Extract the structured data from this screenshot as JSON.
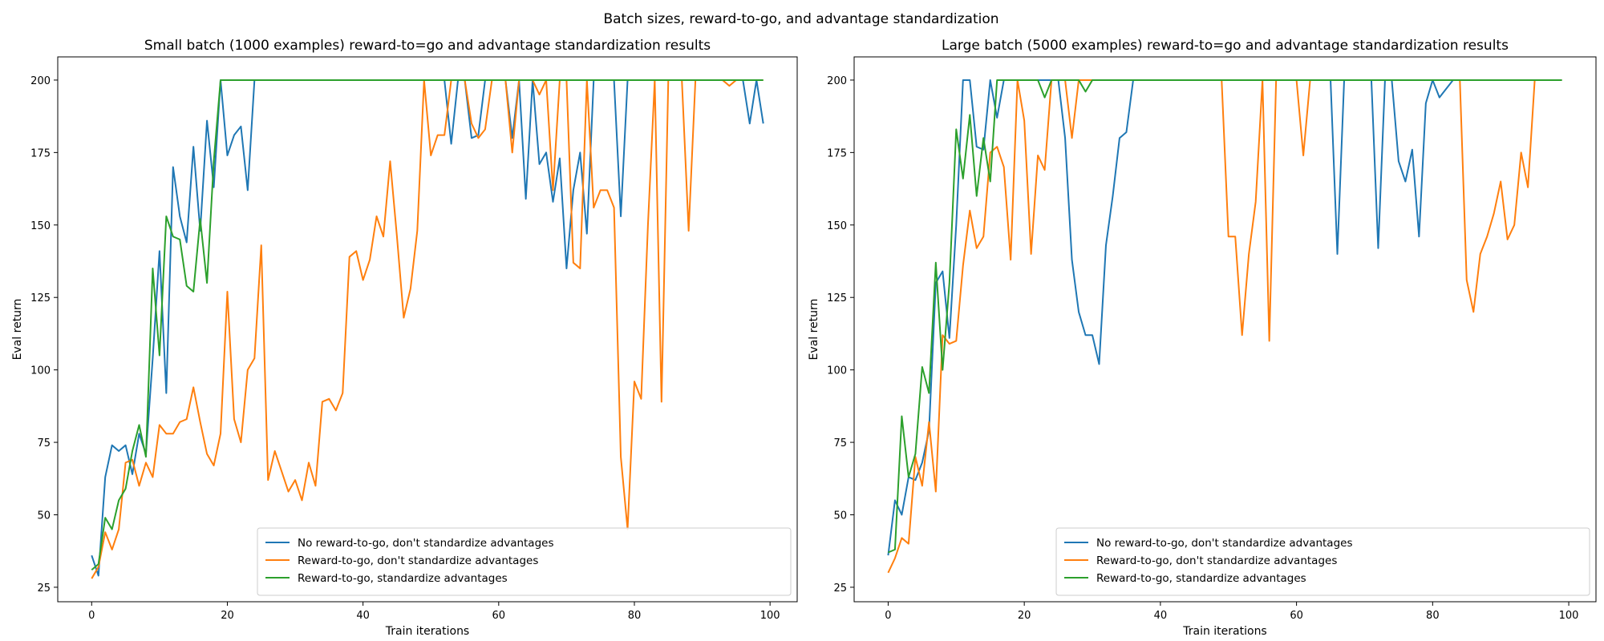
{
  "figure": {
    "title": "Batch sizes, reward-to-go, and advantage standardization"
  },
  "series_colors": [
    "#1f77b4",
    "#ff7f0e",
    "#2ca02c"
  ],
  "chart_data": [
    {
      "type": "line",
      "title": "Small batch (1000 examples) reward-to=go and advantage standardization results",
      "xlabel": "Train iterations",
      "ylabel": "Eval return",
      "xlim": [
        -5,
        104
      ],
      "ylim": [
        20,
        208
      ],
      "xticks": [
        0,
        20,
        40,
        60,
        80,
        100
      ],
      "yticks": [
        25,
        50,
        75,
        100,
        125,
        150,
        175,
        200
      ],
      "legend_position": "lower-right",
      "series": [
        {
          "name": "No reward-to-go, don't standardize advantages",
          "color": "#1f77b4",
          "values": [
            36,
            29,
            63,
            74,
            72,
            74,
            64,
            78,
            71,
            104,
            141,
            92,
            170,
            153,
            144,
            177,
            148,
            186,
            163,
            200,
            174,
            181,
            184,
            162,
            200,
            200,
            200,
            200,
            200,
            200,
            200,
            200,
            200,
            200,
            200,
            200,
            200,
            200,
            200,
            200,
            200,
            200,
            200,
            200,
            200,
            200,
            200,
            200,
            200,
            200,
            200,
            200,
            200,
            178,
            200,
            200,
            180,
            181,
            200,
            200,
            200,
            200,
            180,
            200,
            159,
            200,
            171,
            175,
            158,
            173,
            135,
            162,
            175,
            147,
            200,
            200,
            200,
            200,
            153,
            200,
            200,
            200,
            200,
            200,
            200,
            200,
            200,
            200,
            200,
            200,
            200,
            200,
            200,
            200,
            200,
            200,
            200,
            185,
            200,
            185
          ]
        },
        {
          "name": "Reward-to-go, don't standardize advantages",
          "color": "#ff7f0e",
          "values": [
            28,
            32,
            44,
            38,
            45,
            68,
            69,
            60,
            68,
            63,
            81,
            78,
            78,
            82,
            83,
            94,
            82,
            71,
            67,
            78,
            127,
            83,
            75,
            100,
            104,
            143,
            62,
            72,
            65,
            58,
            62,
            55,
            68,
            60,
            89,
            90,
            86,
            92,
            139,
            141,
            131,
            138,
            153,
            146,
            172,
            146,
            118,
            128,
            148,
            200,
            174,
            181,
            181,
            200,
            200,
            200,
            185,
            180,
            183,
            200,
            200,
            200,
            175,
            200,
            200,
            200,
            195,
            200,
            162,
            200,
            200,
            137,
            135,
            200,
            156,
            162,
            162,
            156,
            70,
            45,
            96,
            90,
            150,
            200,
            89,
            200,
            200,
            200,
            148,
            200,
            200,
            200,
            200,
            200,
            198,
            200,
            200,
            200,
            200,
            200
          ]
        },
        {
          "name": "Reward-to-go, standardize advantages",
          "color": "#2ca02c",
          "values": [
            31,
            33,
            49,
            45,
            55,
            59,
            72,
            81,
            70,
            135,
            105,
            153,
            146,
            145,
            129,
            127,
            152,
            130,
            172,
            200,
            200,
            200,
            200,
            200,
            200,
            200,
            200,
            200,
            200,
            200,
            200,
            200,
            200,
            200,
            200,
            200,
            200,
            200,
            200,
            200,
            200,
            200,
            200,
            200,
            200,
            200,
            200,
            200,
            200,
            200,
            200,
            200,
            200,
            200,
            200,
            200,
            200,
            200,
            200,
            200,
            200,
            200,
            200,
            200,
            200,
            200,
            200,
            200,
            200,
            200,
            200,
            200,
            200,
            200,
            200,
            200,
            200,
            200,
            200,
            200,
            200,
            200,
            200,
            200,
            200,
            200,
            200,
            200,
            200,
            200,
            200,
            200,
            200,
            200,
            200,
            200,
            200,
            200,
            200,
            200
          ]
        }
      ]
    },
    {
      "type": "line",
      "title": "Large batch (5000 examples) reward-to=go and advantage standardization results",
      "xlabel": "Train iterations",
      "ylabel": "Eval return",
      "xlim": [
        -5,
        104
      ],
      "ylim": [
        20,
        208
      ],
      "xticks": [
        0,
        20,
        40,
        60,
        80,
        100
      ],
      "yticks": [
        25,
        50,
        75,
        100,
        125,
        150,
        175,
        200
      ],
      "legend_position": "lower-right",
      "series": [
        {
          "name": "No reward-to-go, don't standardize advantages",
          "color": "#1f77b4",
          "values": [
            36,
            55,
            50,
            63,
            62,
            68,
            79,
            130,
            134,
            111,
            150,
            200,
            200,
            177,
            176,
            200,
            187,
            200,
            200,
            200,
            200,
            200,
            200,
            200,
            200,
            200,
            180,
            138,
            120,
            112,
            112,
            102,
            143,
            160,
            180,
            182,
            200,
            200,
            200,
            200,
            200,
            200,
            200,
            200,
            200,
            200,
            200,
            200,
            200,
            200,
            200,
            200,
            200,
            200,
            200,
            200,
            200,
            200,
            200,
            200,
            200,
            200,
            200,
            200,
            200,
            200,
            140,
            200,
            200,
            200,
            200,
            200,
            142,
            200,
            200,
            172,
            165,
            176,
            146,
            192,
            200,
            194,
            197,
            200,
            200,
            200,
            200,
            200,
            200,
            200,
            200,
            200,
            200,
            200,
            200,
            200,
            200,
            200,
            200,
            200
          ]
        },
        {
          "name": "Reward-to-go, don't standardize advantages",
          "color": "#ff7f0e",
          "values": [
            30,
            35,
            42,
            40,
            70,
            60,
            82,
            58,
            112,
            109,
            110,
            136,
            155,
            142,
            146,
            175,
            177,
            170,
            138,
            200,
            186,
            140,
            174,
            169,
            200,
            200,
            200,
            180,
            200,
            200,
            200,
            200,
            200,
            200,
            200,
            200,
            200,
            200,
            200,
            200,
            200,
            200,
            200,
            200,
            200,
            200,
            200,
            200,
            200,
            200,
            146,
            146,
            112,
            140,
            158,
            200,
            110,
            200,
            200,
            200,
            200,
            174,
            200,
            200,
            200,
            200,
            200,
            200,
            200,
            200,
            200,
            200,
            200,
            200,
            200,
            200,
            200,
            200,
            200,
            200,
            200,
            200,
            200,
            200,
            200,
            131,
            120,
            140,
            146,
            154,
            165,
            145,
            150,
            175,
            163,
            200,
            200,
            200,
            200,
            200
          ]
        },
        {
          "name": "Reward-to-go, standardize advantages",
          "color": "#2ca02c",
          "values": [
            37,
            38,
            84,
            63,
            71,
            101,
            92,
            137,
            100,
            130,
            183,
            166,
            188,
            160,
            180,
            165,
            200,
            200,
            200,
            200,
            200,
            200,
            200,
            194,
            200,
            200,
            200,
            200,
            200,
            196,
            200,
            200,
            200,
            200,
            200,
            200,
            200,
            200,
            200,
            200,
            200,
            200,
            200,
            200,
            200,
            200,
            200,
            200,
            200,
            200,
            200,
            200,
            200,
            200,
            200,
            200,
            200,
            200,
            200,
            200,
            200,
            200,
            200,
            200,
            200,
            200,
            200,
            200,
            200,
            200,
            200,
            200,
            200,
            200,
            200,
            200,
            200,
            200,
            200,
            200,
            200,
            200,
            200,
            200,
            200,
            200,
            200,
            200,
            200,
            200,
            200,
            200,
            200,
            200,
            200,
            200,
            200,
            200,
            200,
            200
          ]
        }
      ]
    }
  ]
}
